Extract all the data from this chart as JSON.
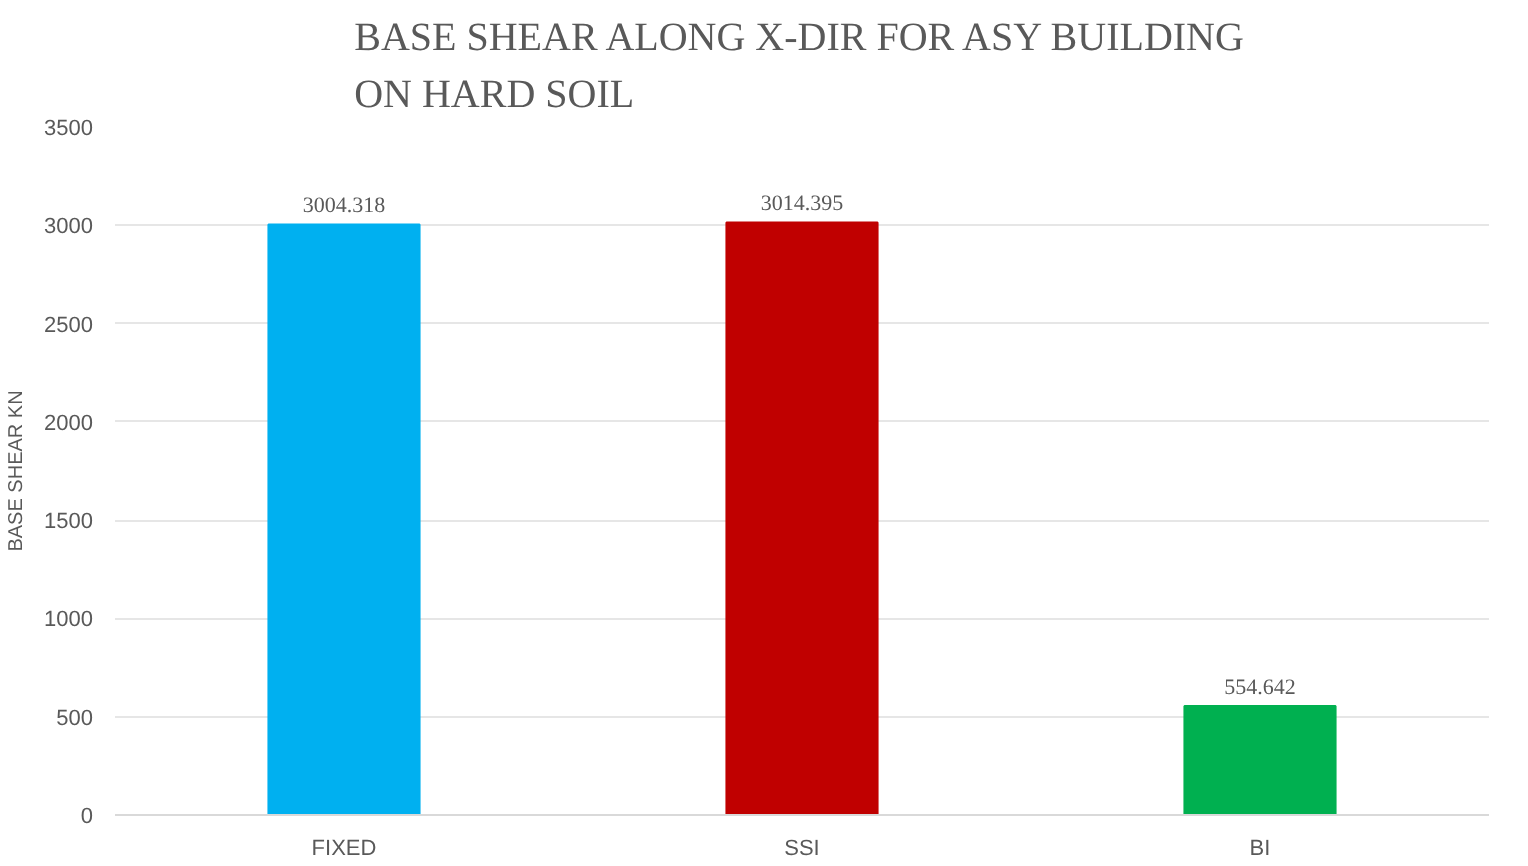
{
  "chart_data": {
    "type": "bar",
    "title": "BASE SHEAR ALONG X-DIR FOR ASY BUILDING\nON HARD SOIL",
    "ylabel": "BASE SHEAR KN",
    "categories": [
      "FIXED",
      "SSI",
      "BI"
    ],
    "values": [
      3004.318,
      3014.395,
      554.642
    ],
    "colors": [
      "#00b0f0",
      "#c00000",
      "#00b050"
    ],
    "ylim": [
      0,
      3500
    ],
    "yticks": [
      0,
      500,
      1000,
      1500,
      2000,
      2500,
      3000,
      3500
    ],
    "grid": "y",
    "data_labels": true
  }
}
